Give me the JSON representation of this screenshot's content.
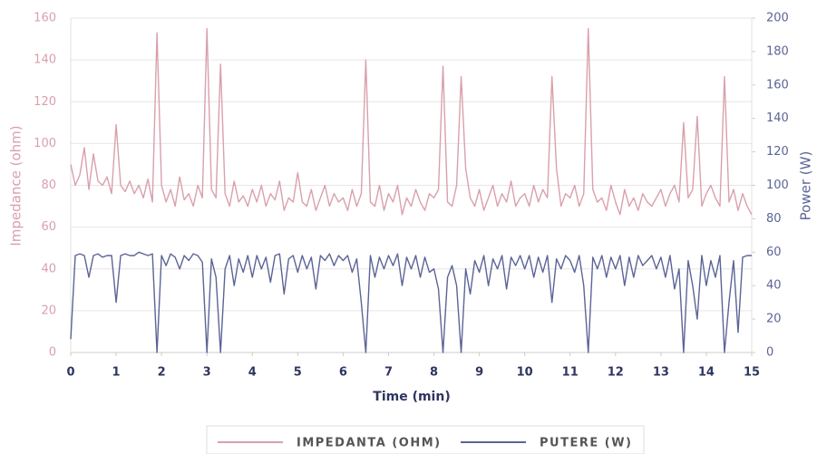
{
  "chart_data": {
    "type": "line",
    "x_label": "Time (min)",
    "y_label": "Impedance (ohm)",
    "y2_label": "Power (W)",
    "x": [
      0,
      0.1,
      0.2,
      0.3,
      0.4,
      0.5,
      0.6,
      0.7,
      0.8,
      0.9,
      1,
      1.1,
      1.2,
      1.3,
      1.4,
      1.5,
      1.6,
      1.7,
      1.8,
      1.9,
      2,
      2.1,
      2.2,
      2.3,
      2.4,
      2.5,
      2.6,
      2.7,
      2.8,
      2.9,
      3,
      3.1,
      3.2,
      3.3,
      3.4,
      3.5,
      3.6,
      3.7,
      3.8,
      3.9,
      4,
      4.1,
      4.2,
      4.3,
      4.4,
      4.5,
      4.6,
      4.7,
      4.8,
      4.9,
      5,
      5.1,
      5.2,
      5.3,
      5.4,
      5.5,
      5.6,
      5.7,
      5.8,
      5.9,
      6,
      6.1,
      6.2,
      6.3,
      6.4,
      6.5,
      6.6,
      6.7,
      6.8,
      6.9,
      7,
      7.1,
      7.2,
      7.3,
      7.4,
      7.5,
      7.6,
      7.7,
      7.8,
      7.9,
      8,
      8.1,
      8.2,
      8.3,
      8.4,
      8.5,
      8.6,
      8.7,
      8.8,
      8.9,
      9,
      9.1,
      9.2,
      9.3,
      9.4,
      9.5,
      9.6,
      9.7,
      9.8,
      9.9,
      10,
      10.1,
      10.2,
      10.3,
      10.4,
      10.5,
      10.6,
      10.7,
      10.8,
      10.9,
      11,
      11.1,
      11.2,
      11.3,
      11.4,
      11.5,
      11.6,
      11.7,
      11.8,
      11.9,
      12,
      12.1,
      12.2,
      12.3,
      12.4,
      12.5,
      12.6,
      12.7,
      12.8,
      12.9,
      13,
      13.1,
      13.2,
      13.3,
      13.4,
      13.5,
      13.6,
      13.7,
      13.8,
      13.9,
      14,
      14.1,
      14.2,
      14.3,
      14.4,
      14.5,
      14.6,
      14.7,
      14.8,
      14.9,
      15
    ],
    "series": [
      {
        "name": "IMPEDANTA (OHM)",
        "color": "#d9a0ac",
        "axis": "y",
        "values": [
          90,
          80,
          85,
          98,
          78,
          95,
          82,
          80,
          84,
          76,
          109,
          80,
          77,
          82,
          76,
          80,
          74,
          83,
          72,
          153,
          80,
          72,
          78,
          70,
          84,
          73,
          76,
          70,
          80,
          74,
          155,
          78,
          74,
          138,
          76,
          70,
          82,
          72,
          75,
          70,
          78,
          72,
          80,
          70,
          76,
          73,
          82,
          68,
          74,
          72,
          86,
          72,
          70,
          78,
          68,
          74,
          80,
          70,
          76,
          72,
          74,
          68,
          78,
          70,
          76,
          140,
          72,
          70,
          80,
          68,
          76,
          72,
          80,
          66,
          74,
          70,
          78,
          72,
          68,
          76,
          74,
          78,
          137,
          72,
          70,
          80,
          132,
          88,
          74,
          70,
          78,
          68,
          74,
          80,
          70,
          76,
          72,
          82,
          70,
          74,
          76,
          70,
          80,
          72,
          78,
          74,
          132,
          88,
          70,
          76,
          74,
          80,
          70,
          76,
          155,
          78,
          72,
          74,
          68,
          80,
          72,
          66,
          78,
          70,
          74,
          68,
          76,
          72,
          70,
          74,
          78,
          70,
          76,
          80,
          72,
          110,
          74,
          78,
          113,
          70,
          76,
          80,
          74,
          70,
          132,
          72,
          78,
          68,
          76,
          70,
          66
        ]
      },
      {
        "name": "PUTERE (W)",
        "color": "#5b6496",
        "axis": "y2",
        "values": [
          8,
          58,
          59,
          58,
          45,
          58,
          59,
          57,
          58,
          58,
          30,
          58,
          59,
          58,
          58,
          60,
          59,
          58,
          59,
          0,
          58,
          52,
          59,
          57,
          50,
          58,
          55,
          59,
          58,
          54,
          0,
          56,
          45,
          0,
          50,
          58,
          40,
          56,
          48,
          58,
          45,
          58,
          50,
          57,
          42,
          58,
          59,
          35,
          56,
          58,
          48,
          58,
          50,
          57,
          38,
          58,
          55,
          59,
          52,
          58,
          55,
          58,
          48,
          56,
          30,
          0,
          58,
          45,
          57,
          50,
          58,
          52,
          59,
          40,
          57,
          50,
          58,
          45,
          57,
          48,
          50,
          38,
          0,
          45,
          52,
          40,
          0,
          50,
          35,
          55,
          48,
          58,
          40,
          56,
          50,
          58,
          38,
          57,
          52,
          58,
          50,
          58,
          45,
          57,
          48,
          58,
          30,
          56,
          50,
          58,
          55,
          48,
          58,
          40,
          0,
          57,
          50,
          58,
          45,
          57,
          50,
          58,
          40,
          57,
          45,
          58,
          52,
          55,
          58,
          50,
          57,
          45,
          58,
          38,
          50,
          0,
          55,
          40,
          20,
          58,
          40,
          55,
          45,
          58,
          0,
          30,
          55,
          12,
          57,
          58,
          58
        ]
      }
    ],
    "xlim": [
      0,
      15
    ],
    "xticks": [
      0,
      1,
      2,
      3,
      4,
      5,
      6,
      7,
      8,
      9,
      10,
      11,
      12,
      13,
      14,
      15
    ],
    "ylim": [
      0,
      160
    ],
    "yticks": [
      0,
      20,
      40,
      60,
      80,
      100,
      120,
      140,
      160
    ],
    "y2lim": [
      0,
      200
    ],
    "y2ticks": [
      0,
      20,
      40,
      60,
      80,
      100,
      120,
      140,
      160,
      180,
      200
    ],
    "grid": true,
    "legend": "bottom"
  }
}
